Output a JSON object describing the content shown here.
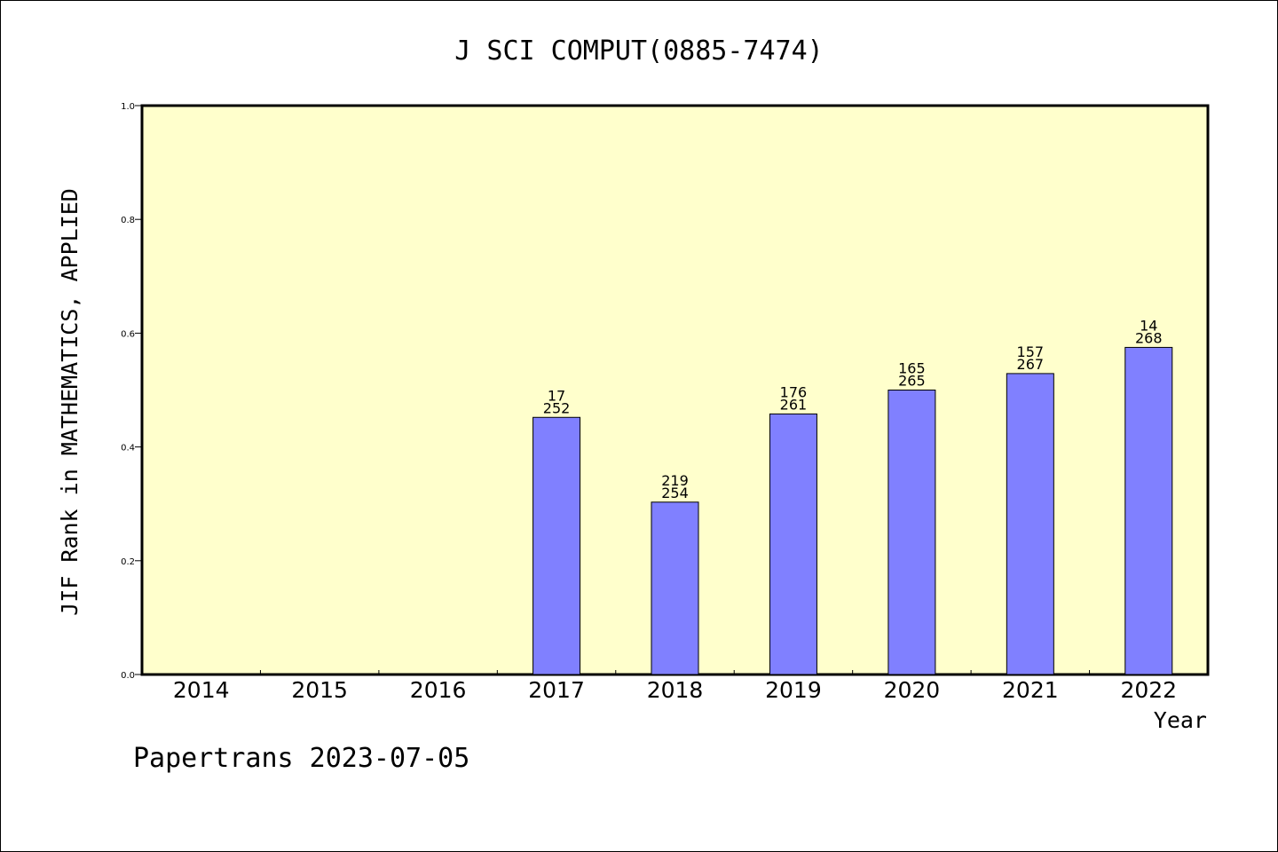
{
  "chart_data": {
    "type": "bar",
    "title": "J SCI COMPUT(0885-7474)",
    "xlabel": "Year",
    "ylabel": "JIF Rank in MATHEMATICS, APPLIED",
    "ylim": [
      0,
      1.0
    ],
    "yticks": [
      "0.0",
      "0.2",
      "0.4",
      "0.6",
      "0.8",
      "1.0"
    ],
    "categories": [
      "2014",
      "2015",
      "2016",
      "2017",
      "2018",
      "2019",
      "2020",
      "2021",
      "2022"
    ],
    "values": [
      null,
      null,
      null,
      0.452,
      0.303,
      0.458,
      0.5,
      0.529,
      0.575
    ],
    "bar_labels": [
      null,
      null,
      null,
      [
        "17",
        "252"
      ],
      [
        "219",
        "254"
      ],
      [
        "176",
        "261"
      ],
      [
        "165",
        "265"
      ],
      [
        "157",
        "267"
      ],
      [
        "14",
        "268"
      ]
    ],
    "grid": false,
    "colors": {
      "plot_background": "#ffffcc",
      "bar_fill": "#8080ff",
      "bar_stroke": "#000000"
    }
  },
  "footer": {
    "text": "Papertrans 2023-07-05"
  }
}
